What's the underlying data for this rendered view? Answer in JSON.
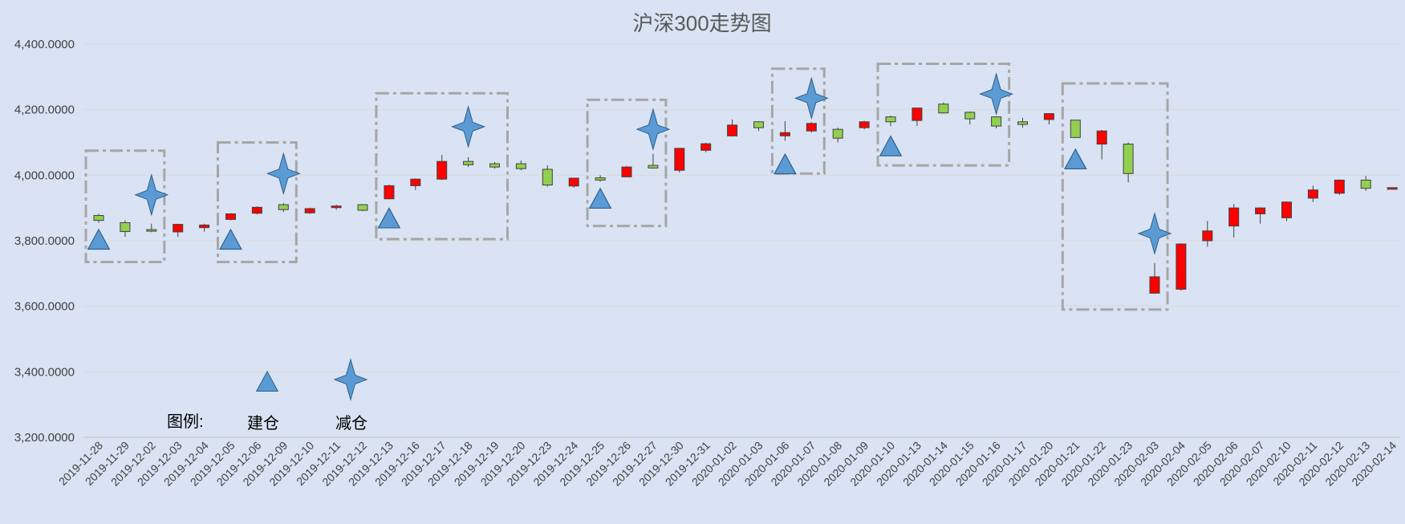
{
  "chart_data": {
    "type": "candlestick",
    "title": "沪深300走势图",
    "xlabel": "",
    "ylabel": "",
    "ylim": [
      3200,
      4400
    ],
    "yticks": [
      "3,200.0000",
      "3,400.0000",
      "3,600.0000",
      "3,800.0000",
      "4,000.0000",
      "4,200.0000",
      "4,400.0000"
    ],
    "ytick_values": [
      3200,
      3400,
      3600,
      3800,
      4000,
      4200,
      4400
    ],
    "grid": true,
    "categories": [
      "2019-11-28",
      "2019-11-29",
      "2019-12-02",
      "2019-12-03",
      "2019-12-04",
      "2019-12-05",
      "2019-12-06",
      "2019-12-09",
      "2019-12-10",
      "2019-12-11",
      "2019-12-12",
      "2019-12-13",
      "2019-12-16",
      "2019-12-17",
      "2019-12-18",
      "2019-12-19",
      "2019-12-20",
      "2019-12-23",
      "2019-12-24",
      "2019-12-25",
      "2019-12-26",
      "2019-12-27",
      "2019-12-30",
      "2019-12-31",
      "2020-01-02",
      "2020-01-03",
      "2020-01-06",
      "2020-01-07",
      "2020-01-08",
      "2020-01-09",
      "2020-01-10",
      "2020-01-13",
      "2020-01-14",
      "2020-01-15",
      "2020-01-16",
      "2020-01-17",
      "2020-01-20",
      "2020-01-21",
      "2020-01-22",
      "2020-01-23",
      "2020-02-03",
      "2020-02-04",
      "2020-02-05",
      "2020-02-06",
      "2020-02-07",
      "2020-02-10",
      "2020-02-11",
      "2020-02-12",
      "2020-02-13",
      "2020-02-14"
    ],
    "candles": [
      {
        "open": 3877,
        "close": 3862,
        "high": 3882,
        "low": 3855
      },
      {
        "open": 3855,
        "close": 3828,
        "high": 3862,
        "low": 3812
      },
      {
        "open": 3834,
        "close": 3830,
        "high": 3852,
        "low": 3826
      },
      {
        "open": 3827,
        "close": 3850,
        "high": 3852,
        "low": 3812
      },
      {
        "open": 3840,
        "close": 3848,
        "high": 3852,
        "low": 3828
      },
      {
        "open": 3865,
        "close": 3882,
        "high": 3884,
        "low": 3862
      },
      {
        "open": 3884,
        "close": 3902,
        "high": 3905,
        "low": 3880
      },
      {
        "open": 3910,
        "close": 3895,
        "high": 3915,
        "low": 3888
      },
      {
        "open": 3885,
        "close": 3898,
        "high": 3901,
        "low": 3882
      },
      {
        "open": 3901,
        "close": 3906,
        "high": 3910,
        "low": 3894
      },
      {
        "open": 3910,
        "close": 3893,
        "high": 3912,
        "low": 3890
      },
      {
        "open": 3928,
        "close": 3968,
        "high": 3971,
        "low": 3926
      },
      {
        "open": 3968,
        "close": 3988,
        "high": 3990,
        "low": 3955
      },
      {
        "open": 3988,
        "close": 4042,
        "high": 4062,
        "low": 3985
      },
      {
        "open": 4042,
        "close": 4032,
        "high": 4055,
        "low": 4025
      },
      {
        "open": 4035,
        "close": 4025,
        "high": 4040,
        "low": 4020
      },
      {
        "open": 4035,
        "close": 4020,
        "high": 4045,
        "low": 4015
      },
      {
        "open": 4018,
        "close": 3970,
        "high": 4030,
        "low": 3965
      },
      {
        "open": 3967,
        "close": 3991,
        "high": 3992,
        "low": 3962
      },
      {
        "open": 3992,
        "close": 3985,
        "high": 4000,
        "low": 3980
      },
      {
        "open": 3995,
        "close": 4025,
        "high": 4028,
        "low": 3994
      },
      {
        "open": 4030,
        "close": 4022,
        "high": 4065,
        "low": 4020
      },
      {
        "open": 4015,
        "close": 4082,
        "high": 4083,
        "low": 4008
      },
      {
        "open": 4076,
        "close": 4096,
        "high": 4099,
        "low": 4070
      },
      {
        "open": 4120,
        "close": 4153,
        "high": 4170,
        "low": 4118
      },
      {
        "open": 4163,
        "close": 4145,
        "high": 4165,
        "low": 4135
      },
      {
        "open": 4120,
        "close": 4130,
        "high": 4165,
        "low": 4105
      },
      {
        "open": 4135,
        "close": 4158,
        "high": 4162,
        "low": 4130
      },
      {
        "open": 4140,
        "close": 4113,
        "high": 4145,
        "low": 4100
      },
      {
        "open": 4145,
        "close": 4163,
        "high": 4166,
        "low": 4140
      },
      {
        "open": 4178,
        "close": 4163,
        "high": 4182,
        "low": 4150
      },
      {
        "open": 4167,
        "close": 4205,
        "high": 4206,
        "low": 4150
      },
      {
        "open": 4217,
        "close": 4190,
        "high": 4222,
        "low": 4188
      },
      {
        "open": 4192,
        "close": 4172,
        "high": 4194,
        "low": 4155
      },
      {
        "open": 4178,
        "close": 4150,
        "high": 4180,
        "low": 4143
      },
      {
        "open": 4163,
        "close": 4155,
        "high": 4175,
        "low": 4145
      },
      {
        "open": 4170,
        "close": 4188,
        "high": 4189,
        "low": 4155
      },
      {
        "open": 4168,
        "close": 4115,
        "high": 4169,
        "low": 4114
      },
      {
        "open": 4095,
        "close": 4135,
        "high": 4138,
        "low": 4048
      },
      {
        "open": 4095,
        "close": 4005,
        "high": 4100,
        "low": 3978
      },
      {
        "open": 3640,
        "close": 3690,
        "high": 3732,
        "low": 3638
      },
      {
        "open": 3652,
        "close": 3790,
        "high": 3792,
        "low": 3648
      },
      {
        "open": 3800,
        "close": 3830,
        "high": 3860,
        "low": 3782
      },
      {
        "open": 3845,
        "close": 3900,
        "high": 3912,
        "low": 3810
      },
      {
        "open": 3882,
        "close": 3900,
        "high": 3902,
        "low": 3852
      },
      {
        "open": 3870,
        "close": 3918,
        "high": 3920,
        "low": 3860
      },
      {
        "open": 3930,
        "close": 3955,
        "high": 3968,
        "low": 3918
      },
      {
        "open": 3945,
        "close": 3985,
        "high": 3987,
        "low": 3940
      },
      {
        "open": 3985,
        "close": 3960,
        "high": 3998,
        "low": 3952
      },
      {
        "open": 3960,
        "close": 3962,
        "high": 3962,
        "low": 3960
      }
    ],
    "series": [
      {
        "name": "建仓",
        "marker": "triangle",
        "points": [
          {
            "index": 0,
            "value": 3800
          },
          {
            "index": 5,
            "value": 3800
          },
          {
            "index": 11,
            "value": 3865
          },
          {
            "index": 19,
            "value": 3925
          },
          {
            "index": 26,
            "value": 4030
          },
          {
            "index": 30,
            "value": 4085
          },
          {
            "index": 37,
            "value": 4045
          }
        ]
      },
      {
        "name": "减仓",
        "marker": "star4",
        "points": [
          {
            "index": 2,
            "value": 3940
          },
          {
            "index": 7,
            "value": 4005
          },
          {
            "index": 14,
            "value": 4148
          },
          {
            "index": 21,
            "value": 4140
          },
          {
            "index": 27,
            "value": 4235
          },
          {
            "index": 34,
            "value": 4248
          },
          {
            "index": 40,
            "value": 3822
          }
        ]
      }
    ],
    "highlight_regions": [
      {
        "start": "2019-11-28",
        "end": "2019-12-02",
        "ymin": 3735,
        "ymax": 4075
      },
      {
        "start": "2019-12-05",
        "end": "2019-12-09",
        "ymin": 3735,
        "ymax": 4100
      },
      {
        "start": "2019-12-13",
        "end": "2019-12-19",
        "ymin": 3805,
        "ymax": 4250
      },
      {
        "start": "2019-12-25",
        "end": "2019-12-27",
        "ymin": 3845,
        "ymax": 4230
      },
      {
        "start": "2020-01-06",
        "end": "2020-01-07",
        "ymin": 4005,
        "ymax": 4325
      },
      {
        "start": "2020-01-10",
        "end": "2020-01-16",
        "ymin": 4030,
        "ymax": 4340
      },
      {
        "start": "2020-01-21",
        "end": "2020-02-03",
        "ymin": 3590,
        "ymax": 4280
      }
    ],
    "legend_title": "图例:",
    "legend": {
      "position": "bottom-left",
      "entries": [
        "建仓",
        "减仓"
      ]
    },
    "colors": {
      "up": "#ff0000",
      "down": "#92d050",
      "marker": "#5b9bd5",
      "region": "#a6a6a6",
      "grid": "#d9d9d9",
      "background": "#dae3f3"
    }
  }
}
